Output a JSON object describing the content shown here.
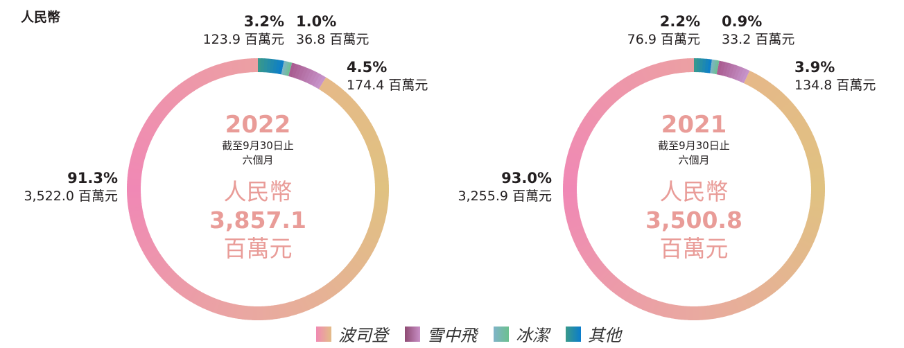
{
  "unit_label": "人民幣",
  "chart_data": [
    {
      "type": "pie",
      "donut": true,
      "year": "2022",
      "period": [
        "截至9月30日止",
        "六個月"
      ],
      "currency": "人民幣",
      "total": "3,857.1",
      "total_unit": "百萬元",
      "slices": [
        {
          "name": "其他",
          "percent": 3.2,
          "percent_label": "3.2%",
          "value": 123.9,
          "value_label": "123.9 百萬元"
        },
        {
          "name": "冰潔",
          "percent": 1.0,
          "percent_label": "1.0%",
          "value": 36.8,
          "value_label": "36.8 百萬元"
        },
        {
          "name": "雪中飛",
          "percent": 4.5,
          "percent_label": "4.5%",
          "value": 174.4,
          "value_label": "174.4 百萬元"
        },
        {
          "name": "波司登",
          "percent": 91.3,
          "percent_label": "91.3%",
          "value": 3522.0,
          "value_label": "3,522.0 百萬元"
        }
      ]
    },
    {
      "type": "pie",
      "donut": true,
      "year": "2021",
      "period": [
        "截至9月30日止",
        "六個月"
      ],
      "currency": "人民幣",
      "total": "3,500.8",
      "total_unit": "百萬元",
      "slices": [
        {
          "name": "其他",
          "percent": 2.2,
          "percent_label": "2.2%",
          "value": 76.9,
          "value_label": "76.9 百萬元"
        },
        {
          "name": "冰潔",
          "percent": 0.9,
          "percent_label": "0.9%",
          "value": 33.2,
          "value_label": "33.2 百萬元"
        },
        {
          "name": "雪中飛",
          "percent": 3.9,
          "percent_label": "3.9%",
          "value": 134.8,
          "value_label": "134.8 百萬元"
        },
        {
          "name": "波司登",
          "percent": 93.0,
          "percent_label": "93.0%",
          "value": 3255.9,
          "value_label": "3,255.9 百萬元"
        }
      ]
    }
  ],
  "legend": [
    {
      "name": "波司登",
      "colors": [
        "#f08ab3",
        "#e3bc88"
      ]
    },
    {
      "name": "雪中飛",
      "colors": [
        "#8e4a72",
        "#c88fc6"
      ]
    },
    {
      "name": "冰潔",
      "colors": [
        "#7fb3c8",
        "#6cc08f"
      ]
    },
    {
      "name": "其他",
      "colors": [
        "#3a9a8a",
        "#0a7ccc"
      ]
    }
  ]
}
